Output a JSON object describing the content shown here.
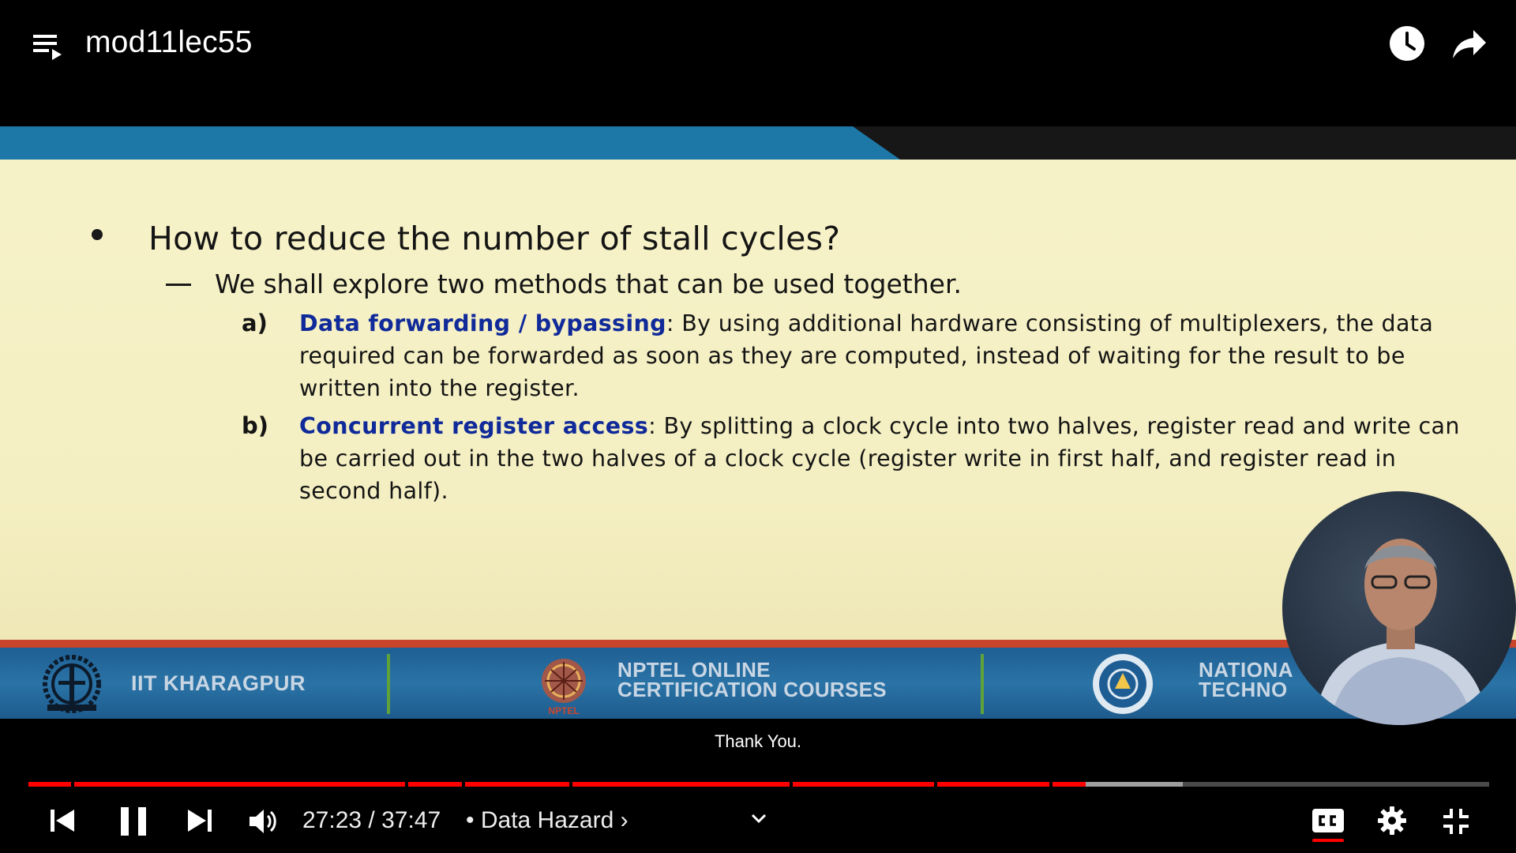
{
  "header": {
    "title": "mod11lec55",
    "icons": [
      "playlist-icon",
      "watch-later-icon",
      "share-icon"
    ]
  },
  "slide": {
    "heading": "How to reduce the number of stall cycles?",
    "sub_point": "We shall explore two methods that can be used together.",
    "items": [
      {
        "label": "a)",
        "term": "Data forwarding / bypassing",
        "text": ": By using additional hardware consisting of multiplexers, the data required can be forwarded as soon as they are computed, instead of waiting for the result to be written into the register."
      },
      {
        "label": "b)",
        "term": "Concurrent register access",
        "text": ": By splitting a clock cycle into two halves, register read and write can be carried out in the two halves of a clock cycle (register write in first half, and register read in second half)."
      }
    ],
    "footer": {
      "iit": "IIT KHARAGPUR",
      "nptel_line1": "NPTEL ONLINE",
      "nptel_line2": "CERTIFICATION COURSES",
      "nptel_logo_text": "NPTEL",
      "nit_line1": "NATIONA",
      "nit_line2": "TECHNO"
    }
  },
  "caption": "Thank You.",
  "player": {
    "current_time": "27:23",
    "duration": "37:47",
    "time_display": "27:23 / 37:47",
    "chapter": "• Data Hazard",
    "chapter_chevron": "›",
    "played_fraction": 0.724,
    "buffered_fraction": 0.79,
    "colors": {
      "played": "#ff0000",
      "buffered": "#9e9e9e",
      "unplayed": "#4a4a4a",
      "accent": "#ff0000"
    },
    "control_icons": [
      "previous-icon",
      "pause-icon",
      "next-icon",
      "volume-icon",
      "chevron-down-icon",
      "captions-icon",
      "settings-icon",
      "exit-fullscreen-icon"
    ]
  }
}
